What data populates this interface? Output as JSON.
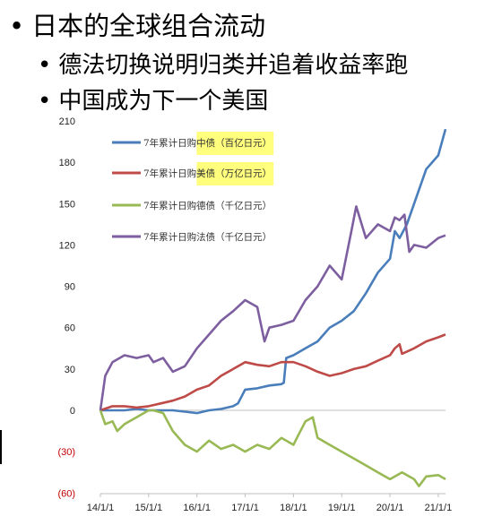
{
  "bullets": [
    {
      "text": "日本的全球组合流动"
    },
    {
      "text": "德法切换说明归类并追着收益率跑"
    },
    {
      "text": "中国成为下一个美国"
    }
  ],
  "bullet_symbol": "•",
  "chart_data": {
    "type": "line",
    "title": "",
    "xlabel": "",
    "ylabel": "",
    "ylim": [
      -60,
      210
    ],
    "yticks": [
      210,
      180,
      150,
      120,
      90,
      60,
      30,
      0,
      -30,
      -60
    ],
    "ytick_labels": [
      "210",
      "180",
      "150",
      "120",
      "90",
      "60",
      "30",
      "0",
      "(30)",
      "(60)"
    ],
    "xlim": [
      2014.0,
      2021.15
    ],
    "xticks": [
      2014,
      2015,
      2016,
      2017,
      2018,
      2019,
      2020,
      2021
    ],
    "xtick_labels": [
      "14/1/1",
      "15/1/1",
      "16/1/1",
      "17/1/1",
      "18/1/1",
      "19/1/1",
      "20/1/1",
      "21/1/1"
    ],
    "grid": false,
    "legend_position": "top-left",
    "series": [
      {
        "name": "7年累计日购中债（百亿日元）",
        "color": "#4a7ebb",
        "highlight": "中债",
        "x": [
          2014.0,
          2014.25,
          2014.5,
          2014.75,
          2015.0,
          2015.25,
          2015.5,
          2015.75,
          2016.0,
          2016.25,
          2016.5,
          2016.75,
          2016.85,
          2017.0,
          2017.25,
          2017.5,
          2017.75,
          2017.8,
          2017.85,
          2018.0,
          2018.25,
          2018.5,
          2018.75,
          2019.0,
          2019.25,
          2019.5,
          2019.75,
          2020.0,
          2020.1,
          2020.2,
          2020.35,
          2020.5,
          2020.75,
          2021.0,
          2021.15
        ],
        "y": [
          0,
          0,
          0,
          1,
          0,
          0,
          0,
          -1,
          -2,
          0,
          1,
          3,
          5,
          15,
          16,
          18,
          19,
          20,
          38,
          40,
          45,
          50,
          60,
          65,
          72,
          85,
          100,
          110,
          130,
          125,
          135,
          150,
          175,
          185,
          204
        ]
      },
      {
        "name": "7年累计日购美债（万亿日元）",
        "color": "#be4b48",
        "highlight": "美债",
        "x": [
          2014.0,
          2014.25,
          2014.5,
          2014.75,
          2015.0,
          2015.25,
          2015.5,
          2015.75,
          2016.0,
          2016.25,
          2016.5,
          2016.75,
          2017.0,
          2017.25,
          2017.5,
          2017.75,
          2018.0,
          2018.25,
          2018.5,
          2018.75,
          2019.0,
          2019.25,
          2019.5,
          2019.75,
          2020.0,
          2020.1,
          2020.2,
          2020.25,
          2020.5,
          2020.75,
          2021.0,
          2021.15
        ],
        "y": [
          0,
          3,
          3,
          2,
          3,
          5,
          7,
          10,
          15,
          18,
          25,
          30,
          35,
          33,
          32,
          35,
          35,
          32,
          28,
          25,
          27,
          30,
          32,
          36,
          40,
          45,
          48,
          41,
          45,
          50,
          53,
          55
        ]
      },
      {
        "name": "7年累计日购德债（千亿日元）",
        "color": "#98b954",
        "highlight": "",
        "x": [
          2014.0,
          2014.1,
          2014.25,
          2014.35,
          2014.5,
          2014.75,
          2015.0,
          2015.1,
          2015.3,
          2015.5,
          2015.75,
          2016.0,
          2016.25,
          2016.5,
          2016.75,
          2017.0,
          2017.25,
          2017.5,
          2017.75,
          2018.0,
          2018.1,
          2018.25,
          2018.4,
          2018.5,
          2018.75,
          2019.0,
          2019.25,
          2019.5,
          2019.75,
          2020.0,
          2020.25,
          2020.5,
          2020.6,
          2020.75,
          2021.0,
          2021.15
        ],
        "y": [
          0,
          -10,
          -8,
          -15,
          -10,
          -5,
          0,
          0,
          -2,
          -15,
          -25,
          -30,
          -22,
          -28,
          -25,
          -30,
          -25,
          -28,
          -20,
          -25,
          -18,
          -8,
          -5,
          -20,
          -25,
          -30,
          -35,
          -40,
          -45,
          -50,
          -45,
          -50,
          -55,
          -48,
          -47,
          -50
        ]
      },
      {
        "name": "7年累计日购法债（千亿日元）",
        "color": "#7d5fa0",
        "highlight": "",
        "x": [
          2014.0,
          2014.1,
          2014.25,
          2014.5,
          2014.75,
          2015.0,
          2015.1,
          2015.3,
          2015.5,
          2015.75,
          2016.0,
          2016.25,
          2016.5,
          2016.75,
          2017.0,
          2017.25,
          2017.4,
          2017.5,
          2017.75,
          2018.0,
          2018.25,
          2018.5,
          2018.75,
          2019.0,
          2019.2,
          2019.3,
          2019.5,
          2019.75,
          2020.0,
          2020.1,
          2020.2,
          2020.3,
          2020.4,
          2020.5,
          2020.75,
          2021.0,
          2021.15
        ],
        "y": [
          0,
          25,
          35,
          40,
          38,
          40,
          35,
          38,
          28,
          32,
          45,
          55,
          65,
          72,
          80,
          75,
          50,
          60,
          62,
          65,
          80,
          90,
          105,
          95,
          130,
          148,
          125,
          135,
          130,
          140,
          138,
          142,
          115,
          120,
          118,
          125,
          127
        ]
      }
    ]
  }
}
